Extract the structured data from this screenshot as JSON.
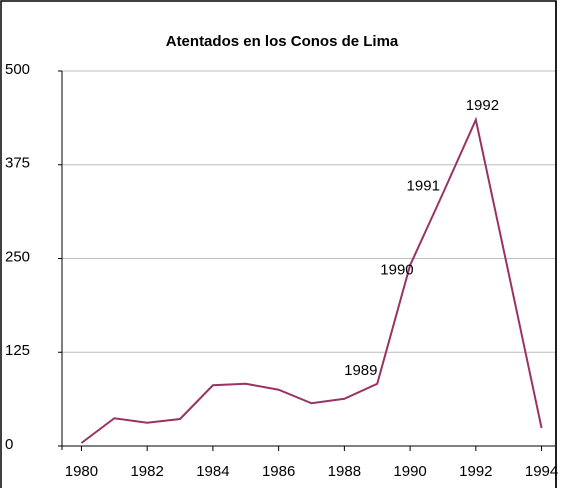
{
  "chart_data": {
    "type": "line",
    "title": "Atentados en los Conos de Lima",
    "x": [
      1980,
      1981,
      1982,
      1983,
      1984,
      1985,
      1986,
      1987,
      1988,
      1989,
      1990,
      1991,
      1992,
      1993,
      1994
    ],
    "series": [
      {
        "name": "Atentados",
        "color": "#993366",
        "values": [
          4,
          37,
          31,
          36,
          81,
          83,
          75,
          57,
          63,
          83,
          241,
          337,
          435,
          230,
          24
        ]
      }
    ],
    "xlim": [
      1979.5,
      1994.5
    ],
    "xticks": [
      1980,
      1982,
      1984,
      1986,
      1988,
      1990,
      1992,
      1994
    ],
    "ylim": [
      0,
      500
    ],
    "yticks": [
      0,
      125,
      250,
      375,
      500
    ],
    "grid": true,
    "annotations": [
      {
        "text": "1989",
        "x": 1988.5,
        "y": 100
      },
      {
        "text": "1990",
        "x": 1989.6,
        "y": 234
      },
      {
        "text": "1991",
        "x": 1990.4,
        "y": 346
      },
      {
        "text": "1992",
        "x": 1992.2,
        "y": 453
      }
    ]
  }
}
